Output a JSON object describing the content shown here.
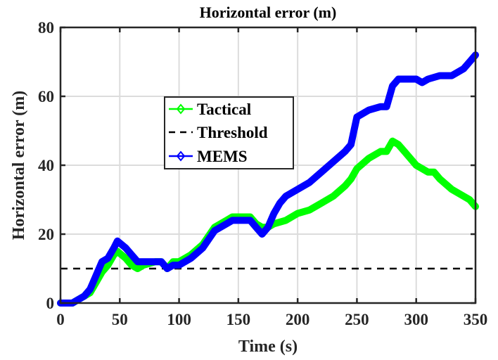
{
  "chart_data": {
    "type": "line",
    "title": "Horizontal error (m)",
    "xlabel": "Time (s)",
    "ylabel": "Horizontal error (m)",
    "xlim": [
      0,
      350
    ],
    "ylim": [
      0,
      80
    ],
    "xticks": [
      0,
      50,
      100,
      150,
      200,
      250,
      300,
      350
    ],
    "yticks": [
      0,
      20,
      40,
      60,
      80
    ],
    "grid": true,
    "legend": {
      "position": "upper-left-center",
      "entries": [
        "Tactical",
        "Threshold",
        "MEMS"
      ]
    },
    "series": [
      {
        "name": "Tactical",
        "color": "#00ff00",
        "marker": "diamond",
        "x": [
          0,
          10,
          15,
          20,
          25,
          30,
          35,
          40,
          45,
          48,
          55,
          60,
          65,
          70,
          80,
          85,
          90,
          95,
          100,
          110,
          120,
          130,
          140,
          145,
          150,
          160,
          165,
          170,
          175,
          180,
          190,
          200,
          210,
          220,
          230,
          240,
          245,
          250,
          260,
          270,
          275,
          280,
          285,
          290,
          300,
          310,
          315,
          320,
          330,
          340,
          345,
          350
        ],
        "y": [
          0,
          0,
          1,
          2,
          3,
          6,
          9,
          11,
          14,
          15,
          13,
          11,
          10,
          11,
          12,
          12,
          10,
          12,
          12,
          14,
          17,
          22,
          24,
          25,
          25,
          25,
          23,
          22,
          22,
          23,
          24,
          26,
          27,
          29,
          31,
          34,
          36,
          39,
          42,
          44,
          44,
          47,
          46,
          44,
          40,
          38,
          38,
          36,
          33,
          31,
          30,
          28
        ]
      },
      {
        "name": "Threshold",
        "color": "#000000",
        "style": "dashed",
        "x": [
          0,
          350
        ],
        "y": [
          10,
          10
        ]
      },
      {
        "name": "MEMS",
        "color": "#0000ff",
        "marker": "diamond",
        "x": [
          0,
          10,
          15,
          20,
          25,
          30,
          35,
          40,
          45,
          48,
          55,
          60,
          65,
          70,
          80,
          85,
          90,
          95,
          100,
          110,
          120,
          130,
          140,
          145,
          150,
          160,
          165,
          170,
          175,
          180,
          185,
          190,
          200,
          210,
          220,
          230,
          240,
          245,
          250,
          260,
          270,
          275,
          280,
          285,
          290,
          300,
          305,
          310,
          320,
          330,
          340,
          345,
          350
        ],
        "y": [
          0,
          0,
          1,
          2,
          4,
          8,
          12,
          13,
          16,
          18,
          16,
          14,
          12,
          12,
          12,
          12,
          10,
          11,
          11,
          13,
          16,
          21,
          23,
          24,
          24,
          24,
          22,
          20,
          22,
          26,
          29,
          31,
          33,
          35,
          38,
          41,
          44,
          46,
          54,
          56,
          57,
          57,
          63,
          65,
          65,
          65,
          64,
          65,
          66,
          66,
          68,
          70,
          72
        ]
      }
    ]
  }
}
